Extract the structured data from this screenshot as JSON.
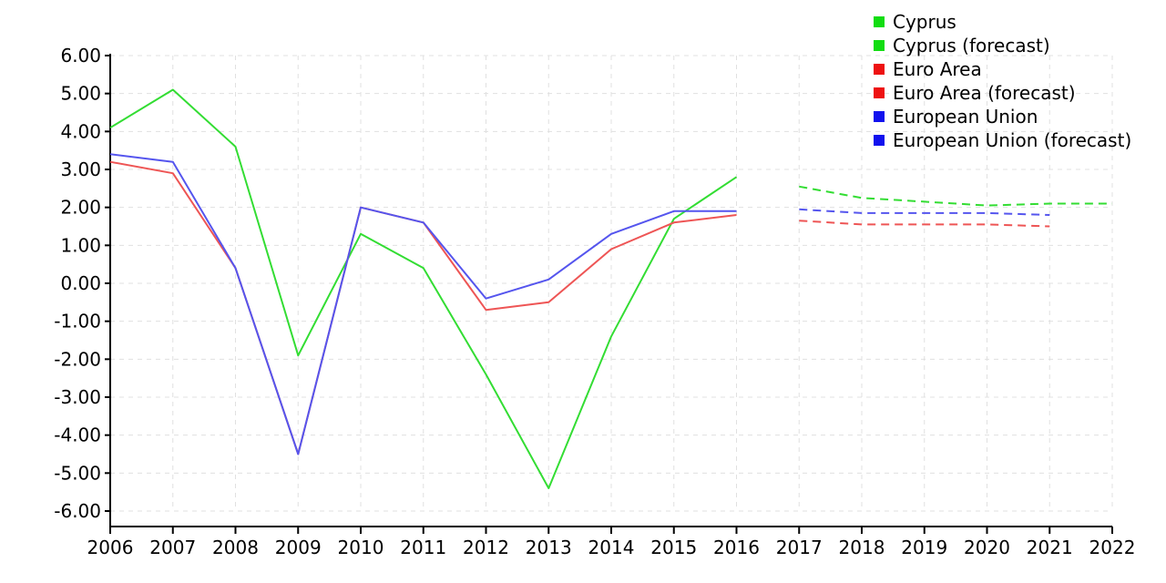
{
  "chart_data": {
    "type": "line",
    "title": "",
    "xlabel": "",
    "ylabel": "",
    "x": [
      2006,
      2007,
      2008,
      2009,
      2010,
      2011,
      2012,
      2013,
      2014,
      2015,
      2016,
      2017,
      2018,
      2019,
      2020,
      2021,
      2022
    ],
    "x_tick_labels": [
      "2006",
      "2007",
      "2008",
      "2009",
      "2010",
      "2011",
      "2012",
      "2013",
      "2014",
      "2015",
      "2016",
      "2017",
      "2018",
      "2019",
      "2020",
      "2021",
      "2022"
    ],
    "xlim": [
      2006,
      2022
    ],
    "ylim": [
      -6,
      6
    ],
    "y_ticks": [
      6,
      5,
      4,
      3,
      2,
      1,
      0,
      -1,
      -2,
      -3,
      -4,
      -5,
      -6
    ],
    "y_tick_labels": [
      "6.00",
      "5.00",
      "4.00",
      "3.00",
      "2.00",
      "1.00",
      "0.00",
      "-1.00",
      "-2.00",
      "-3.00",
      "-4.00",
      "-5.00",
      "-6.00"
    ],
    "grid": true,
    "legend_position": "top-right",
    "series": [
      {
        "name": "Cyprus",
        "color": "#33dd33",
        "dashed": false,
        "points": [
          [
            2006,
            4.1
          ],
          [
            2007,
            5.1
          ],
          [
            2008,
            3.6
          ],
          [
            2009,
            -1.9
          ],
          [
            2010,
            1.3
          ],
          [
            2011,
            0.4
          ],
          [
            2012,
            -2.4
          ],
          [
            2013,
            -5.4
          ],
          [
            2014,
            -1.4
          ],
          [
            2015,
            1.7
          ],
          [
            2016,
            2.8
          ]
        ]
      },
      {
        "name": "Cyprus (forecast)",
        "color": "#33dd33",
        "dashed": true,
        "points": [
          [
            2017,
            2.55
          ],
          [
            2018,
            2.25
          ],
          [
            2019,
            2.15
          ],
          [
            2020,
            2.05
          ],
          [
            2021,
            2.1
          ],
          [
            2022,
            2.1
          ]
        ]
      },
      {
        "name": "Euro Area",
        "color": "#ee5555",
        "dashed": false,
        "points": [
          [
            2006,
            3.2
          ],
          [
            2007,
            2.9
          ],
          [
            2008,
            0.4
          ],
          [
            2009,
            -4.5
          ],
          [
            2010,
            2.0
          ],
          [
            2011,
            1.6
          ],
          [
            2012,
            -0.7
          ],
          [
            2013,
            -0.5
          ],
          [
            2014,
            0.9
          ],
          [
            2015,
            1.6
          ],
          [
            2016,
            1.8
          ]
        ]
      },
      {
        "name": "Euro Area (forecast)",
        "color": "#ee5555",
        "dashed": true,
        "points": [
          [
            2017,
            1.65
          ],
          [
            2018,
            1.55
          ],
          [
            2019,
            1.55
          ],
          [
            2020,
            1.55
          ],
          [
            2021,
            1.5
          ]
        ]
      },
      {
        "name": "European Union",
        "color": "#5555ee",
        "dashed": false,
        "points": [
          [
            2006,
            3.4
          ],
          [
            2007,
            3.2
          ],
          [
            2008,
            0.4
          ],
          [
            2009,
            -4.5
          ],
          [
            2010,
            2.0
          ],
          [
            2011,
            1.6
          ],
          [
            2012,
            -0.4
          ],
          [
            2013,
            0.1
          ],
          [
            2014,
            1.3
          ],
          [
            2015,
            1.9
          ],
          [
            2016,
            1.9
          ]
        ]
      },
      {
        "name": "European Union (forecast)",
        "color": "#5555ee",
        "dashed": true,
        "points": [
          [
            2017,
            1.95
          ],
          [
            2018,
            1.85
          ],
          [
            2019,
            1.85
          ],
          [
            2020,
            1.85
          ],
          [
            2021,
            1.8
          ]
        ]
      }
    ],
    "legend_swatch_colors": [
      "#11dd11",
      "#11dd11",
      "#ee1111",
      "#ee1111",
      "#1111ee",
      "#1111ee"
    ]
  }
}
